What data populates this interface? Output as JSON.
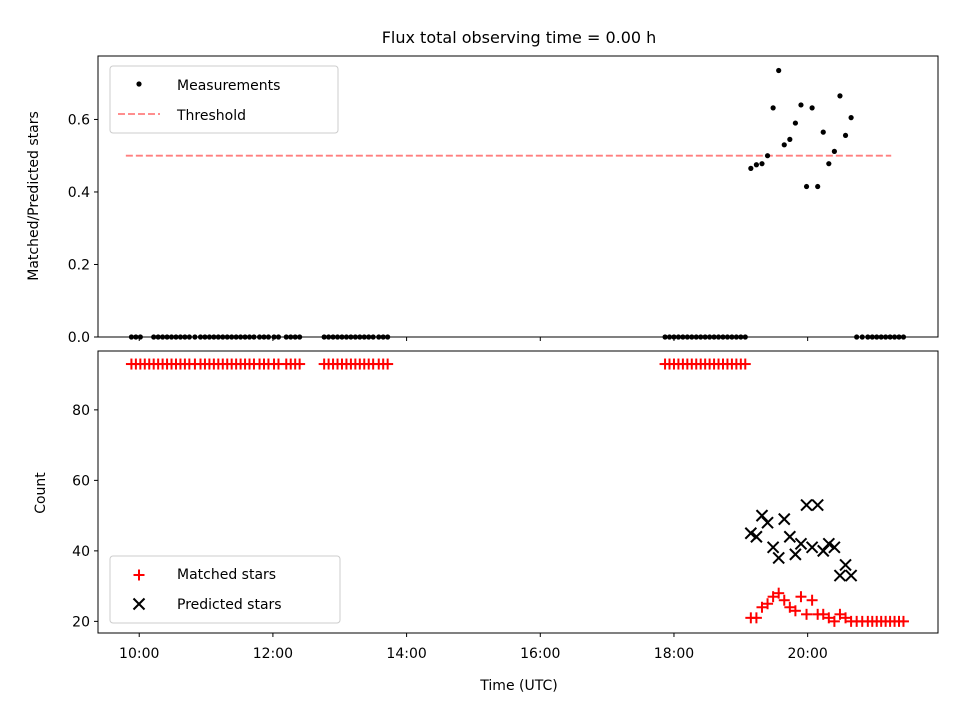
{
  "title": "Flux total observing time = 0.00 h",
  "x_tick_labels": [
    "10:00",
    "12:00",
    "14:00",
    "16:00",
    "18:00",
    "20:00"
  ],
  "colors": {
    "measurements": "#000000",
    "threshold": "#ff7f7f",
    "matched": "#ff0000",
    "predicted": "#000000"
  },
  "chart_data": [
    {
      "type": "scatter",
      "title": "Flux total observing time = 0.00 h",
      "xlabel": "",
      "ylabel": "Matched/Predicted stars",
      "xlim": [
        "09:23",
        "21:57"
      ],
      "ylim": [
        0,
        0.775
      ],
      "y_ticks": [
        0.0,
        0.2,
        0.4,
        0.6
      ],
      "y_tick_labels": [
        "0.0",
        "0.2",
        "0.4",
        "0.6"
      ],
      "legend": {
        "placement": "upper-left",
        "entries": [
          "Measurements",
          "Threshold"
        ]
      },
      "threshold": {
        "name": "Threshold",
        "y": 0.5,
        "x_start": "09:48",
        "x_end": "21:15",
        "style": "dashed"
      },
      "series": [
        {
          "name": "Measurements",
          "marker": "dot",
          "x": [
            "09:53",
            "09:57",
            "10:01",
            "10:13",
            "10:17",
            "10:21",
            "10:25",
            "10:29",
            "10:33",
            "10:37",
            "10:41",
            "10:45",
            "10:50",
            "10:55",
            "10:59",
            "11:03",
            "11:07",
            "11:11",
            "11:15",
            "11:19",
            "11:23",
            "11:27",
            "11:31",
            "11:35",
            "11:39",
            "11:43",
            "11:48",
            "11:52",
            "11:56",
            "12:01",
            "12:05",
            "12:12",
            "12:16",
            "12:20",
            "12:24",
            "12:46",
            "12:50",
            "12:54",
            "12:58",
            "13:02",
            "13:06",
            "13:10",
            "13:14",
            "13:18",
            "13:22",
            "13:26",
            "13:30",
            "13:35",
            "13:39",
            "13:43",
            "17:52",
            "17:56",
            "18:00",
            "18:04",
            "18:08",
            "18:12",
            "18:16",
            "18:20",
            "18:24",
            "18:28",
            "18:32",
            "18:36",
            "18:40",
            "18:44",
            "18:48",
            "18:52",
            "18:56",
            "19:00",
            "19:04",
            "19:09",
            "19:14",
            "19:19",
            "19:24",
            "19:29",
            "19:34",
            "19:39",
            "19:44",
            "19:49",
            "19:54",
            "19:59",
            "20:04",
            "20:09",
            "20:14",
            "20:19",
            "20:24",
            "20:29",
            "20:34",
            "20:39",
            "20:44",
            "20:49",
            "20:54",
            "20:58",
            "21:02",
            "21:06",
            "21:10",
            "21:14",
            "21:18",
            "21:22",
            "21:26"
          ],
          "y": [
            0,
            0,
            0,
            0,
            0,
            0,
            0,
            0,
            0,
            0,
            0,
            0,
            0,
            0,
            0,
            0,
            0,
            0,
            0,
            0,
            0,
            0,
            0,
            0,
            0,
            0,
            0,
            0,
            0,
            0,
            0,
            0,
            0,
            0,
            0,
            0,
            0,
            0,
            0,
            0,
            0,
            0,
            0,
            0,
            0,
            0,
            0,
            0,
            0,
            0,
            0,
            0,
            0,
            0,
            0,
            0,
            0,
            0,
            0,
            0,
            0,
            0,
            0,
            0,
            0,
            0,
            0,
            0,
            0,
            0.465,
            0.475,
            0.478,
            0.5,
            0.632,
            0.735,
            0.53,
            0.545,
            0.59,
            0.64,
            0.415,
            0.632,
            0.415,
            0.565,
            0.478,
            0.512,
            0.665,
            0.556,
            0.605,
            0,
            0,
            0,
            0,
            0,
            0,
            0,
            0,
            0,
            0,
            0
          ]
        }
      ]
    },
    {
      "type": "scatter",
      "xlabel": "Time (UTC)",
      "ylabel": "Count",
      "xlim": [
        "09:23",
        "21:57"
      ],
      "ylim": [
        16.7,
        96.7
      ],
      "y_ticks": [
        20,
        40,
        60,
        80
      ],
      "y_tick_labels": [
        "20",
        "40",
        "60",
        "80"
      ],
      "legend": {
        "placement": "lower-left",
        "entries": [
          "Matched stars",
          "Predicted stars"
        ]
      },
      "series": [
        {
          "name": "Matched stars",
          "marker": "plus",
          "x": [
            "09:53",
            "09:57",
            "10:01",
            "10:05",
            "10:09",
            "10:13",
            "10:17",
            "10:21",
            "10:25",
            "10:29",
            "10:33",
            "10:37",
            "10:41",
            "10:45",
            "10:50",
            "10:55",
            "10:59",
            "11:03",
            "11:07",
            "11:11",
            "11:15",
            "11:19",
            "11:23",
            "11:27",
            "11:31",
            "11:35",
            "11:39",
            "11:43",
            "11:48",
            "11:52",
            "11:56",
            "12:01",
            "12:05",
            "12:12",
            "12:16",
            "12:20",
            "12:24",
            "12:46",
            "12:50",
            "12:54",
            "12:58",
            "13:02",
            "13:06",
            "13:10",
            "13:14",
            "13:18",
            "13:22",
            "13:26",
            "13:30",
            "13:35",
            "13:39",
            "13:43",
            "17:52",
            "17:56",
            "18:00",
            "18:04",
            "18:08",
            "18:12",
            "18:16",
            "18:20",
            "18:24",
            "18:28",
            "18:32",
            "18:36",
            "18:40",
            "18:44",
            "18:48",
            "18:52",
            "18:56",
            "19:00",
            "19:04",
            "19:09",
            "19:14",
            "19:19",
            "19:24",
            "19:29",
            "19:34",
            "19:39",
            "19:44",
            "19:49",
            "19:54",
            "19:59",
            "20:04",
            "20:09",
            "20:14",
            "20:19",
            "20:24",
            "20:29",
            "20:34",
            "20:39",
            "20:44",
            "20:49",
            "20:54",
            "20:58",
            "21:02",
            "21:06",
            "21:10",
            "21:14",
            "21:18",
            "21:22",
            "21:26"
          ],
          "y": [
            93,
            93,
            93,
            93,
            93,
            93,
            93,
            93,
            93,
            93,
            93,
            93,
            93,
            93,
            93,
            93,
            93,
            93,
            93,
            93,
            93,
            93,
            93,
            93,
            93,
            93,
            93,
            93,
            93,
            93,
            93,
            93,
            93,
            93,
            93,
            93,
            93,
            93,
            93,
            93,
            93,
            93,
            93,
            93,
            93,
            93,
            93,
            93,
            93,
            93,
            93,
            93,
            93,
            93,
            93,
            93,
            93,
            93,
            93,
            93,
            93,
            93,
            93,
            93,
            93,
            93,
            93,
            93,
            93,
            93,
            93,
            21,
            21,
            24,
            25,
            27,
            28,
            26,
            24,
            23,
            27,
            22,
            26,
            22,
            22,
            21,
            20,
            22,
            21,
            20,
            20,
            20,
            20,
            20,
            20,
            20,
            20,
            20,
            20,
            20,
            20
          ]
        },
        {
          "name": "Predicted stars",
          "marker": "x",
          "x": [
            "19:09",
            "19:14",
            "19:19",
            "19:24",
            "19:29",
            "19:34",
            "19:39",
            "19:44",
            "19:49",
            "19:54",
            "19:59",
            "20:04",
            "20:09",
            "20:14",
            "20:19",
            "20:24",
            "20:29",
            "20:34",
            "20:39"
          ],
          "y": [
            45,
            44,
            50,
            48,
            41,
            38,
            49,
            44,
            39,
            42,
            53,
            41,
            53,
            40,
            42,
            41,
            33,
            36,
            33
          ]
        }
      ]
    }
  ]
}
